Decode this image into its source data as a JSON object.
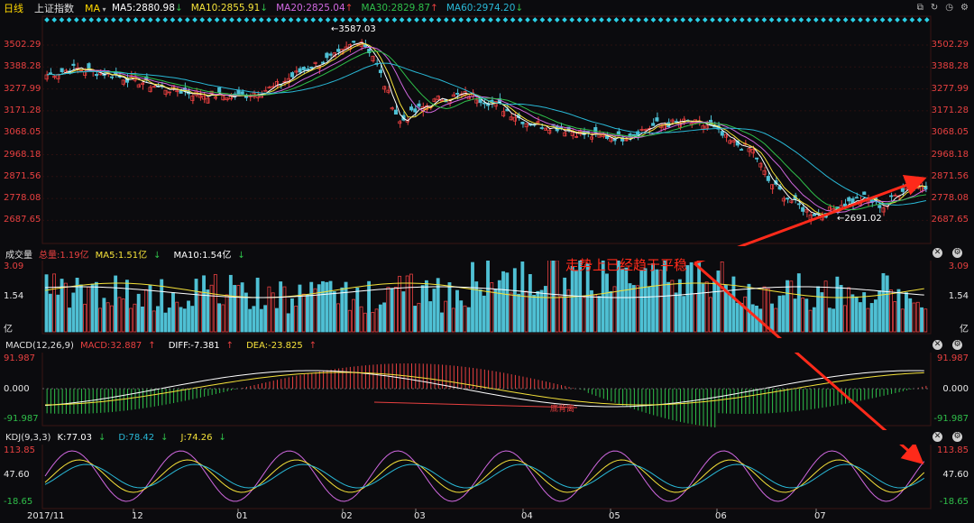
{
  "header": {
    "tab_period": "日线",
    "tab_index": "上证指数",
    "tab_ma": "MA",
    "ma5": "MA5:2880.98",
    "ma10": "MA10:2855.91",
    "ma20": "MA20:2825.04",
    "ma30": "MA30:2829.87",
    "ma60": "MA60:2974.20",
    "arrow_down": "↓",
    "arrow_up": "↑"
  },
  "colors": {
    "up": "#e84040",
    "down": "#4fc0d4",
    "ma5": "#ffffff",
    "ma10": "#f5e23a",
    "ma20": "#d068e0",
    "ma30": "#2fbf4a",
    "ma60": "#29b8d6",
    "annotation": "#ff2a1a"
  },
  "price_axis": [
    "3502.29",
    "3388.28",
    "3277.99",
    "3171.28",
    "3068.05",
    "2968.18",
    "2871.56",
    "2778.08",
    "2687.65"
  ],
  "price_marks": {
    "high": "3587.03",
    "low": "2691.02"
  },
  "volume_panel": {
    "title": "成交量",
    "total": "总量:1.19亿",
    "ma5": "MA5:1.51亿",
    "ma10": "MA10:1.54亿",
    "axis": [
      "3.09",
      "1.54",
      "亿"
    ]
  },
  "macd_panel": {
    "title": "MACD(12,26,9)",
    "macd": "MACD:32.887",
    "diff": "DIFF:-7.381",
    "dea": "DEA:-23.825",
    "axis": [
      "91.987",
      "0.000",
      "-91.987"
    ],
    "divergence_label": "底背离"
  },
  "kdj_panel": {
    "title": "KDJ(9,3,3)",
    "k": "K:77.03",
    "d": "D:78.42",
    "j": "J:74.26",
    "axis": [
      "113.85",
      "47.60",
      "-18.65"
    ]
  },
  "x_axis": [
    "2017/11",
    "12",
    "01",
    "02",
    "03",
    "04",
    "05",
    "06",
    "07"
  ],
  "annotation": "走势上已经趋于平稳",
  "icons": [
    "close-icon",
    "settings-icon",
    "window-restore-icon",
    "refresh-icon",
    "history-icon"
  ]
}
